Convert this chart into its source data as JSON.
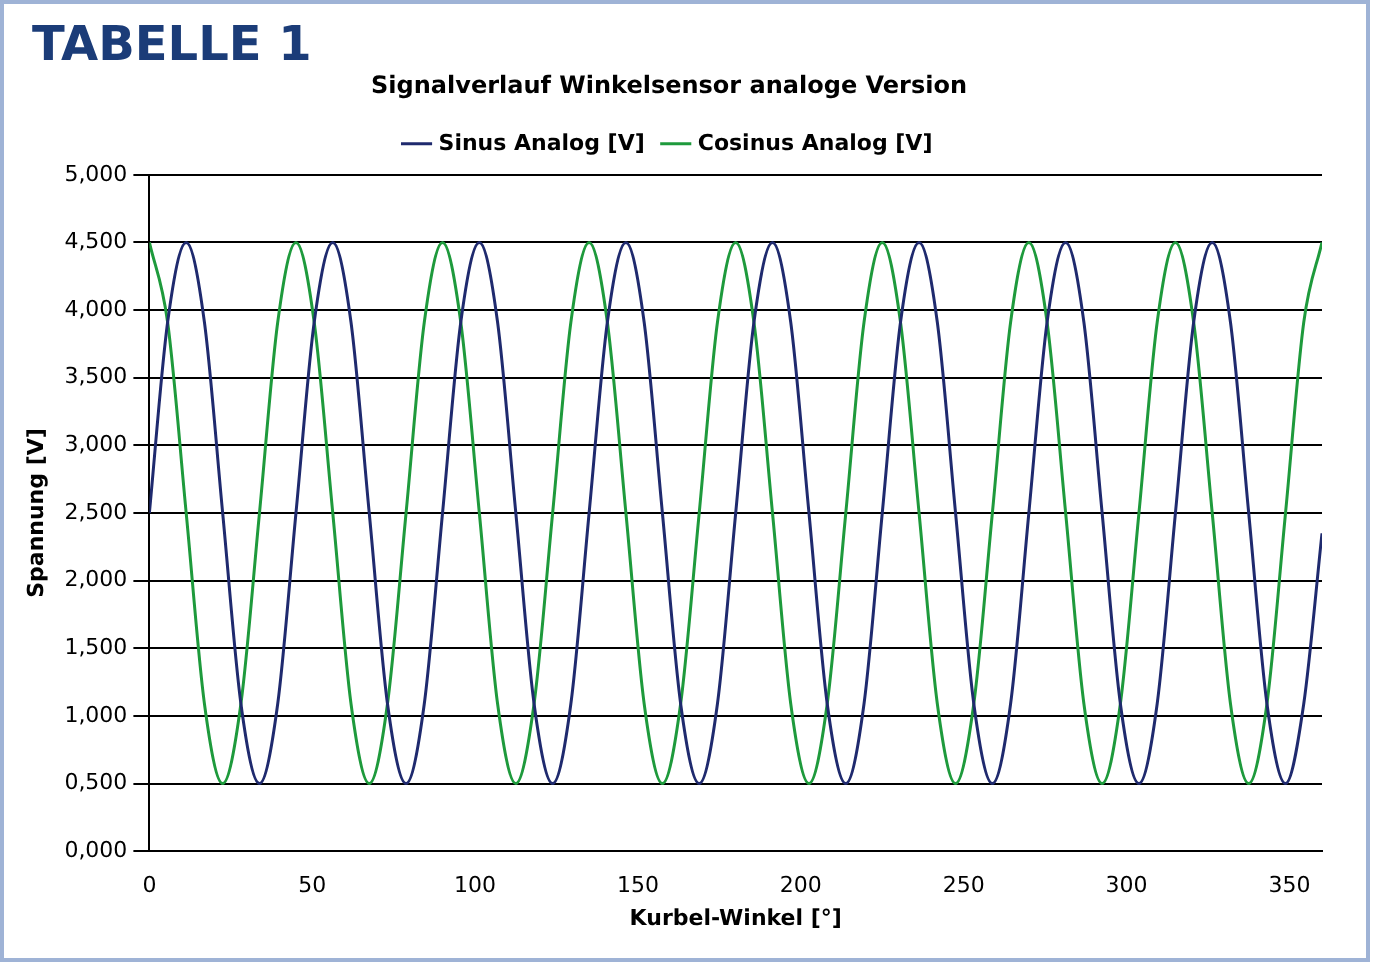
{
  "chart_data": {
    "type": "line",
    "title": "Signalverlauf Winkelsensor analoge Version",
    "xlabel": "Kurbel-Winkel [°]",
    "ylabel": "Spannung [V]",
    "annotations": [
      "TABELLE 1"
    ],
    "x": [
      0,
      5.6,
      11.3,
      16.9,
      22.5,
      28.1,
      33.8,
      39.4,
      45,
      50.6,
      56.3,
      61.9,
      67.5,
      73.1,
      78.8,
      84.4,
      90,
      95.6,
      101.3,
      106.9,
      112.5,
      118.1,
      123.8,
      129.4,
      135,
      140.6,
      146.3,
      151.9,
      157.5,
      163.1,
      168.8,
      174.4,
      180,
      185.6,
      191.3,
      196.9,
      202.5,
      208.1,
      213.8,
      219.4,
      225,
      230.6,
      236.3,
      241.9,
      247.5,
      253.1,
      258.8,
      264.4,
      270,
      275.6,
      281.3,
      286.9,
      292.5,
      298.1,
      303.8,
      309.4,
      315,
      320.6,
      326.3,
      331.9,
      337.5,
      343.1,
      348.8,
      354.4,
      360
    ],
    "series": [
      {
        "name": "Sinus Analog [V]",
        "color": "#1f2a6e",
        "values": [
          2.5,
          3.91,
          4.5,
          3.91,
          2.5,
          1.09,
          0.5,
          1.09,
          2.5,
          3.91,
          4.5,
          3.91,
          2.5,
          1.09,
          0.5,
          1.09,
          2.5,
          3.91,
          4.5,
          3.91,
          2.5,
          1.09,
          0.5,
          1.09,
          2.5,
          3.91,
          4.5,
          3.91,
          2.5,
          1.09,
          0.5,
          1.09,
          2.5,
          3.91,
          4.5,
          3.91,
          2.5,
          1.09,
          0.5,
          1.09,
          2.5,
          3.91,
          4.5,
          3.91,
          2.5,
          1.09,
          0.5,
          1.09,
          2.5,
          3.91,
          4.5,
          3.91,
          2.5,
          1.09,
          0.5,
          1.09,
          2.5,
          3.91,
          4.5,
          3.91,
          2.5,
          1.09,
          0.5,
          1.09,
          2.35
        ]
      },
      {
        "name": "Cosinus Analog [V]",
        "color": "#1e9a3c",
        "values": [
          4.5,
          3.91,
          2.5,
          1.09,
          0.5,
          1.09,
          2.5,
          3.91,
          4.5,
          3.91,
          2.5,
          1.09,
          0.5,
          1.09,
          2.5,
          3.91,
          4.5,
          3.91,
          2.5,
          1.09,
          0.5,
          1.09,
          2.5,
          3.91,
          4.5,
          3.91,
          2.5,
          1.09,
          0.5,
          1.09,
          2.5,
          3.91,
          4.5,
          3.91,
          2.5,
          1.09,
          0.5,
          1.09,
          2.5,
          3.91,
          4.5,
          3.91,
          2.5,
          1.09,
          0.5,
          1.09,
          2.5,
          3.91,
          4.5,
          3.91,
          2.5,
          1.09,
          0.5,
          1.09,
          2.5,
          3.91,
          4.5,
          3.91,
          2.5,
          1.09,
          0.5,
          1.09,
          2.5,
          3.91,
          4.5
        ]
      }
    ],
    "xlim": [
      0,
      360
    ],
    "xticks": [
      0,
      50,
      100,
      150,
      200,
      250,
      300,
      350
    ],
    "ylim": [
      0,
      5
    ],
    "yticks": [
      {
        "value": 0,
        "label": "0,000"
      },
      {
        "value": 0.5,
        "label": "0,500"
      },
      {
        "value": 1,
        "label": "1,000"
      },
      {
        "value": 1.5,
        "label": "1,500"
      },
      {
        "value": 2,
        "label": "2,000"
      },
      {
        "value": 2.5,
        "label": "2,500"
      },
      {
        "value": 3,
        "label": "3,000"
      },
      {
        "value": 3.5,
        "label": "3,500"
      },
      {
        "value": 4,
        "label": "4,000"
      },
      {
        "value": 4.5,
        "label": "4,500"
      },
      {
        "value": 5,
        "label": "5,000"
      }
    ],
    "grid": "y",
    "legend": "top",
    "marker": "none",
    "line_style": "solid"
  }
}
